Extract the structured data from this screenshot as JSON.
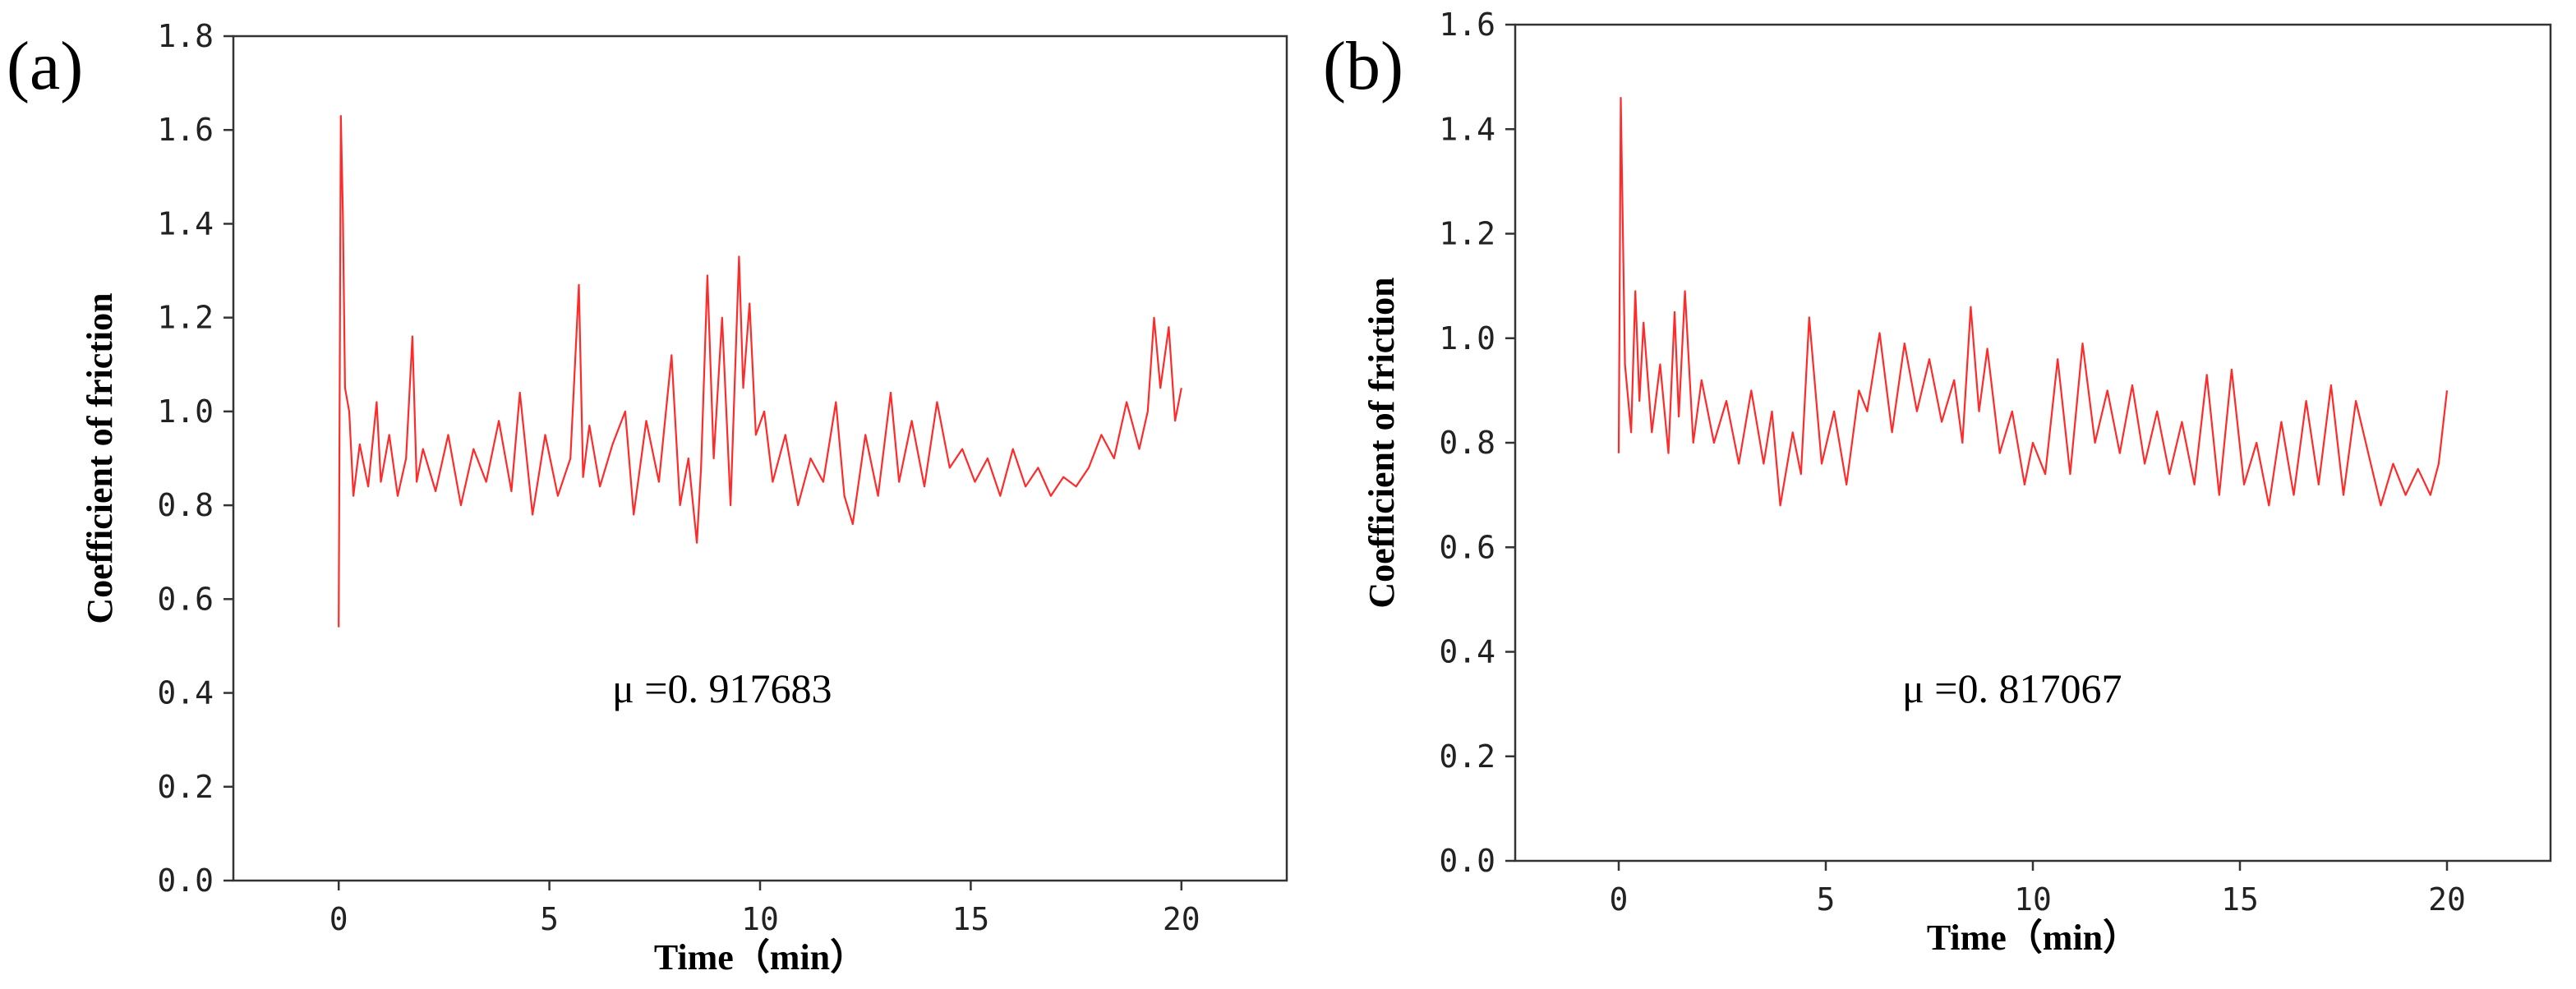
{
  "figure": {
    "panels": [
      {
        "label": "(a)",
        "annotation": "μ =0. 917683"
      },
      {
        "label": "(b)",
        "annotation": "μ =0. 817067"
      }
    ]
  },
  "colors": {
    "series": "#ff2a2a",
    "axis": "#333333"
  },
  "chart_data": [
    {
      "type": "line",
      "title": "",
      "xlabel": "Time（min）",
      "ylabel": "Coefficient of friction",
      "xlim": [
        -2.5,
        22.5
      ],
      "ylim": [
        0.0,
        1.8
      ],
      "xticks": [
        0,
        5,
        10,
        15,
        20
      ],
      "xtick_labels": [
        "0",
        "5",
        "10",
        "15",
        "20"
      ],
      "yticks": [
        0.0,
        0.2,
        0.4,
        0.6,
        0.8,
        1.0,
        1.2,
        1.4,
        1.6,
        1.8
      ],
      "ytick_labels": [
        "0.0",
        "0.2",
        "0.4",
        "0.6",
        "0.8",
        "1.0",
        "1.2",
        "1.4",
        "1.6",
        "1.8"
      ],
      "annotation": "μ =0. 917683",
      "series": [
        {
          "name": "Coefficient of friction",
          "x": [
            0,
            0.05,
            0.1,
            0.15,
            0.25,
            0.35,
            0.5,
            0.7,
            0.9,
            1.0,
            1.2,
            1.4,
            1.6,
            1.75,
            1.85,
            2.0,
            2.3,
            2.6,
            2.9,
            3.2,
            3.5,
            3.8,
            4.1,
            4.3,
            4.6,
            4.9,
            5.2,
            5.5,
            5.7,
            5.8,
            5.95,
            6.2,
            6.5,
            6.8,
            7.0,
            7.3,
            7.6,
            7.9,
            8.1,
            8.3,
            8.5,
            8.6,
            8.75,
            8.9,
            9.1,
            9.3,
            9.5,
            9.6,
            9.75,
            9.9,
            10.1,
            10.3,
            10.6,
            10.9,
            11.2,
            11.5,
            11.8,
            12.0,
            12.2,
            12.5,
            12.8,
            13.1,
            13.3,
            13.6,
            13.9,
            14.2,
            14.5,
            14.8,
            15.1,
            15.4,
            15.7,
            16.0,
            16.3,
            16.6,
            16.9,
            17.2,
            17.5,
            17.8,
            18.1,
            18.4,
            18.7,
            19.0,
            19.2,
            19.35,
            19.5,
            19.7,
            19.85,
            20.0
          ],
          "values": [
            0.54,
            1.63,
            1.42,
            1.05,
            1.0,
            0.82,
            0.93,
            0.84,
            1.02,
            0.85,
            0.95,
            0.82,
            0.9,
            1.16,
            0.85,
            0.92,
            0.83,
            0.95,
            0.8,
            0.92,
            0.85,
            0.98,
            0.83,
            1.04,
            0.78,
            0.95,
            0.82,
            0.9,
            1.27,
            0.86,
            0.97,
            0.84,
            0.93,
            1.0,
            0.78,
            0.98,
            0.85,
            1.12,
            0.8,
            0.9,
            0.72,
            0.88,
            1.29,
            0.9,
            1.2,
            0.8,
            1.33,
            1.05,
            1.23,
            0.95,
            1.0,
            0.85,
            0.95,
            0.8,
            0.9,
            0.85,
            1.02,
            0.82,
            0.76,
            0.95,
            0.82,
            1.04,
            0.85,
            0.98,
            0.84,
            1.02,
            0.88,
            0.92,
            0.85,
            0.9,
            0.82,
            0.92,
            0.84,
            0.88,
            0.82,
            0.86,
            0.84,
            0.88,
            0.95,
            0.9,
            1.02,
            0.92,
            1.0,
            1.2,
            1.05,
            1.18,
            0.98,
            1.05
          ]
        }
      ]
    },
    {
      "type": "line",
      "title": "",
      "xlabel": "Time（min）",
      "ylabel": "Coefficient of friction",
      "xlim": [
        -2.5,
        22.5
      ],
      "ylim": [
        0.0,
        1.6
      ],
      "xticks": [
        0,
        5,
        10,
        15,
        20
      ],
      "xtick_labels": [
        "0",
        "5",
        "10",
        "15",
        "20"
      ],
      "yticks": [
        0.0,
        0.2,
        0.4,
        0.6,
        0.8,
        1.0,
        1.2,
        1.4,
        1.6
      ],
      "ytick_labels": [
        "0.0",
        "0.2",
        "0.4",
        "0.6",
        "0.8",
        "1.0",
        "1.2",
        "1.4",
        "1.6"
      ],
      "annotation": "μ =0. 817067",
      "series": [
        {
          "name": "Coefficient of friction",
          "x": [
            0,
            0.05,
            0.15,
            0.3,
            0.4,
            0.5,
            0.6,
            0.8,
            1.0,
            1.2,
            1.35,
            1.45,
            1.6,
            1.8,
            2.0,
            2.3,
            2.6,
            2.9,
            3.2,
            3.5,
            3.7,
            3.9,
            4.2,
            4.4,
            4.6,
            4.9,
            5.2,
            5.5,
            5.8,
            6.0,
            6.3,
            6.6,
            6.9,
            7.2,
            7.5,
            7.8,
            8.1,
            8.3,
            8.5,
            8.7,
            8.9,
            9.2,
            9.5,
            9.8,
            10.0,
            10.3,
            10.6,
            10.9,
            11.2,
            11.5,
            11.8,
            12.1,
            12.4,
            12.7,
            13.0,
            13.3,
            13.6,
            13.9,
            14.2,
            14.5,
            14.8,
            15.1,
            15.4,
            15.7,
            16.0,
            16.3,
            16.6,
            16.9,
            17.2,
            17.5,
            17.8,
            18.1,
            18.4,
            18.7,
            19.0,
            19.3,
            19.6,
            19.8,
            20.0
          ],
          "values": [
            0.78,
            1.46,
            0.95,
            0.82,
            1.09,
            0.88,
            1.03,
            0.82,
            0.95,
            0.78,
            1.05,
            0.85,
            1.09,
            0.8,
            0.92,
            0.8,
            0.88,
            0.76,
            0.9,
            0.76,
            0.86,
            0.68,
            0.82,
            0.74,
            1.04,
            0.76,
            0.86,
            0.72,
            0.9,
            0.86,
            1.01,
            0.82,
            0.99,
            0.86,
            0.96,
            0.84,
            0.92,
            0.8,
            1.06,
            0.86,
            0.98,
            0.78,
            0.86,
            0.72,
            0.8,
            0.74,
            0.96,
            0.74,
            0.99,
            0.8,
            0.9,
            0.78,
            0.91,
            0.76,
            0.86,
            0.74,
            0.84,
            0.72,
            0.93,
            0.7,
            0.94,
            0.72,
            0.8,
            0.68,
            0.84,
            0.7,
            0.88,
            0.72,
            0.91,
            0.7,
            0.88,
            0.78,
            0.68,
            0.76,
            0.7,
            0.75,
            0.7,
            0.76,
            0.9
          ]
        }
      ]
    }
  ]
}
